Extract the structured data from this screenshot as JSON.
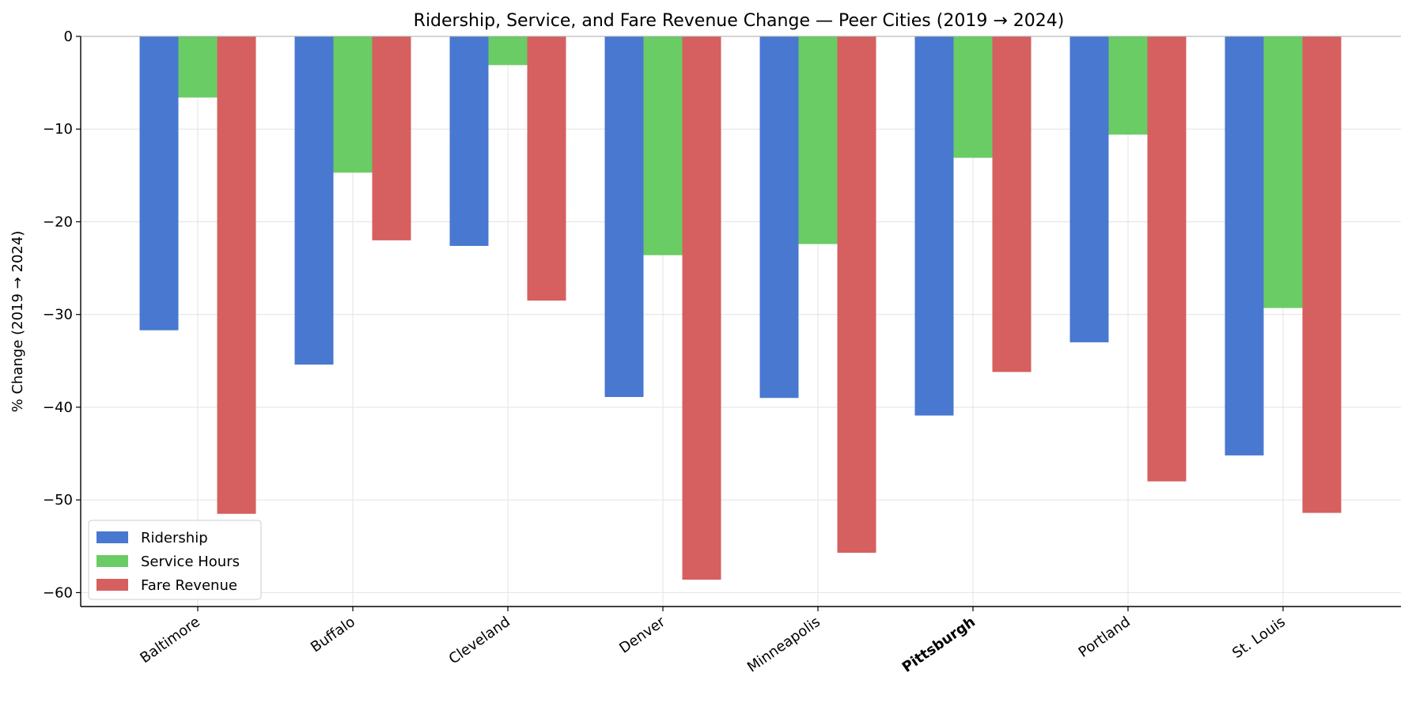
{
  "chart_data": {
    "type": "bar",
    "title": "Ridership, Service, and Fare Revenue Change — Peer Cities (2019 → 2024)",
    "xlabel": "",
    "ylabel": "% Change (2019 → 2024)",
    "categories": [
      "Baltimore",
      "Buffalo",
      "Cleveland",
      "Denver",
      "Minneapolis",
      "Pittsburgh",
      "Portland",
      "St. Louis"
    ],
    "highlight_category": "Pittsburgh",
    "series": [
      {
        "name": "Ridership",
        "color": "#4878d0",
        "values": [
          -31.7,
          -35.4,
          -22.6,
          -38.9,
          -39.0,
          -40.9,
          -33.0,
          -45.2
        ]
      },
      {
        "name": "Service Hours",
        "color": "#6acc64",
        "values": [
          -6.6,
          -14.7,
          -3.1,
          -23.6,
          -22.4,
          -13.1,
          -10.6,
          -29.3
        ]
      },
      {
        "name": "Fare Revenue",
        "color": "#d65f5f",
        "values": [
          -51.5,
          -22.0,
          -28.5,
          -58.6,
          -55.7,
          -36.2,
          -48.0,
          -51.4
        ]
      }
    ],
    "ylim": [
      -61.5,
      0
    ],
    "yticks": [
      0,
      -10,
      -20,
      -30,
      -40,
      -50,
      -60
    ],
    "ytick_labels": [
      "0",
      "−10",
      "−20",
      "−30",
      "−40",
      "−50",
      "−60"
    ],
    "grid": true,
    "legend": {
      "position": "lower-left",
      "entries": [
        "Ridership",
        "Service Hours",
        "Fare Revenue"
      ]
    }
  }
}
